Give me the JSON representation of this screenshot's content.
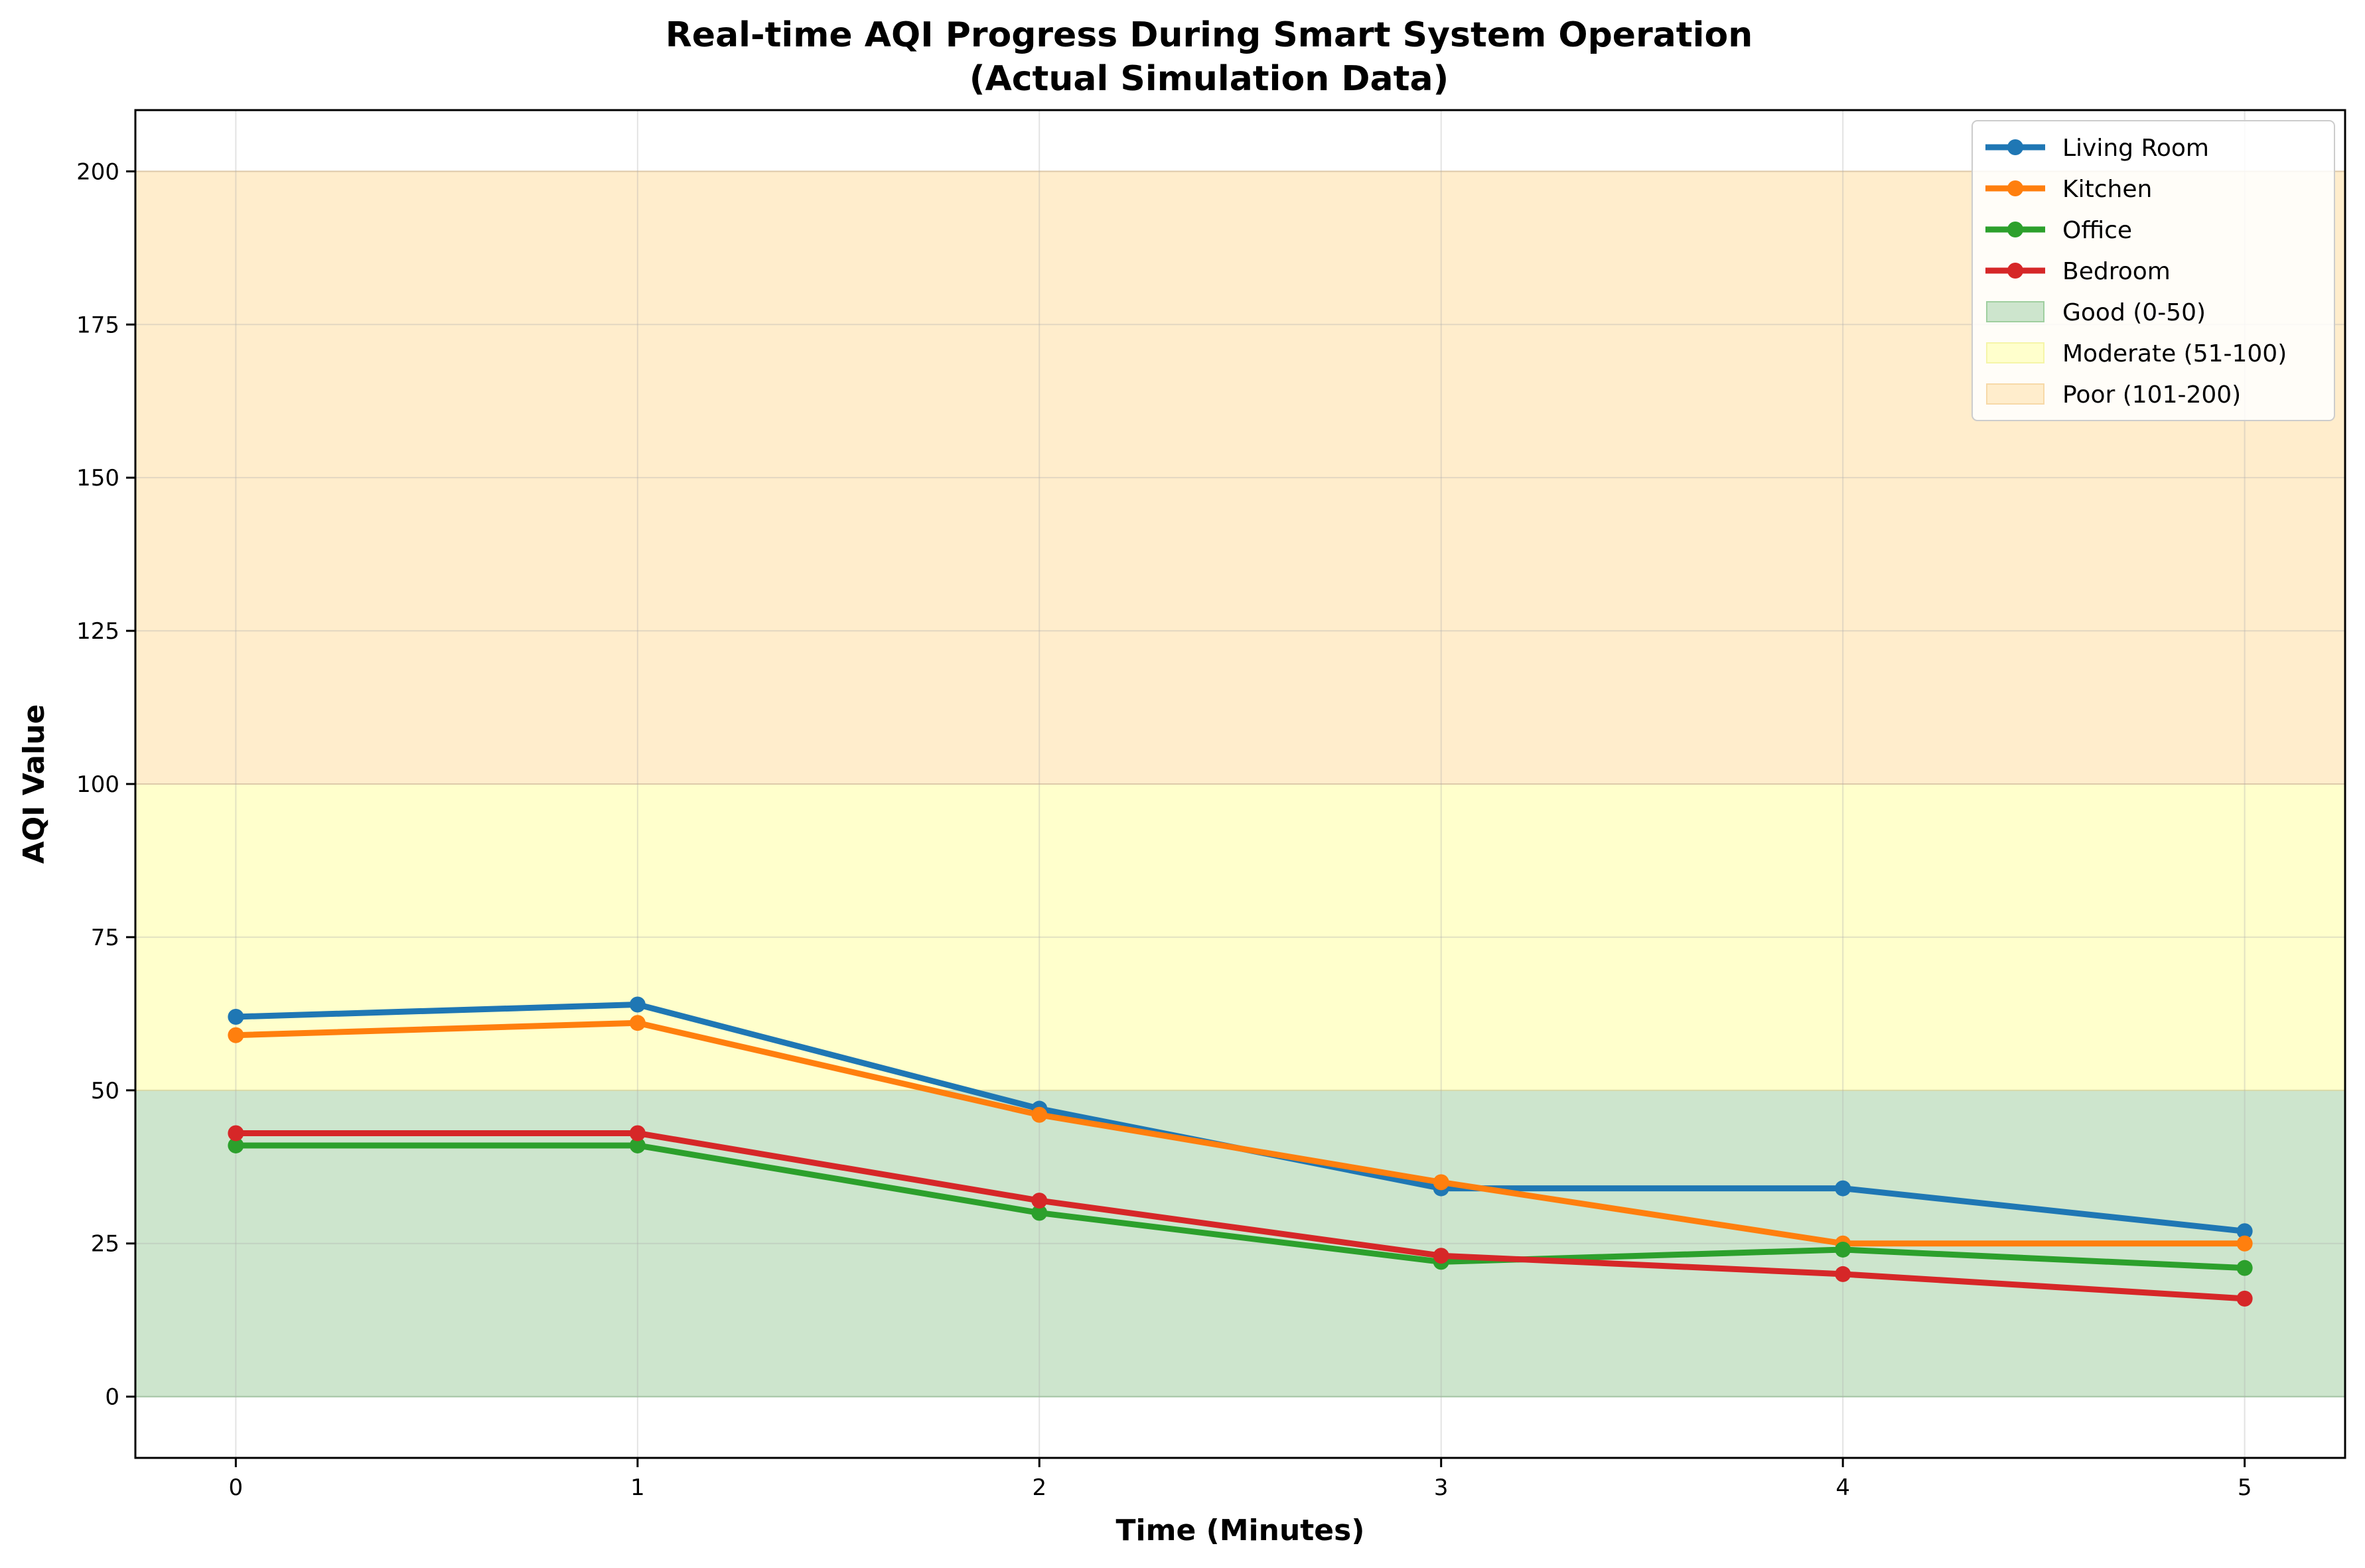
{
  "chart_data": {
    "type": "line",
    "title": "Real-time AQI Progress During Smart System Operation",
    "subtitle": "(Actual Simulation Data)",
    "xlabel": "Time (Minutes)",
    "ylabel": "AQI Value",
    "x": [
      0,
      1,
      2,
      3,
      4,
      5
    ],
    "x_ticks": [
      "0",
      "1",
      "2",
      "3",
      "4",
      "5"
    ],
    "xlim": [
      -0.25,
      5.25
    ],
    "y_ticks": [
      "0",
      "25",
      "50",
      "75",
      "100",
      "125",
      "150",
      "175",
      "200"
    ],
    "ylim": [
      -10,
      210
    ],
    "grid": true,
    "legend_position": "top-right",
    "series": [
      {
        "name": "Living Room",
        "values": [
          62,
          64,
          47,
          34,
          34,
          27
        ],
        "color": "#1f77b4"
      },
      {
        "name": "Kitchen",
        "values": [
          59,
          61,
          46,
          35,
          25,
          25
        ],
        "color": "#ff7f0e"
      },
      {
        "name": "Office",
        "values": [
          41,
          41,
          30,
          22,
          24,
          21
        ],
        "color": "#2ca02c"
      },
      {
        "name": "Bedroom",
        "values": [
          43,
          43,
          32,
          23,
          20,
          16
        ],
        "color": "#d62728"
      }
    ],
    "bands": [
      {
        "name": "Good (0-50)",
        "from": 0,
        "to": 50,
        "color": "#cde5cd",
        "edge": "#9fcf9f"
      },
      {
        "name": "Moderate (51-100)",
        "from": 50,
        "to": 100,
        "color": "#ffffcc",
        "edge": "#f5f5a8"
      },
      {
        "name": "Poor (101-200)",
        "from": 100,
        "to": 200,
        "color": "#ffedcc",
        "edge": "#f7d9a8"
      }
    ]
  }
}
